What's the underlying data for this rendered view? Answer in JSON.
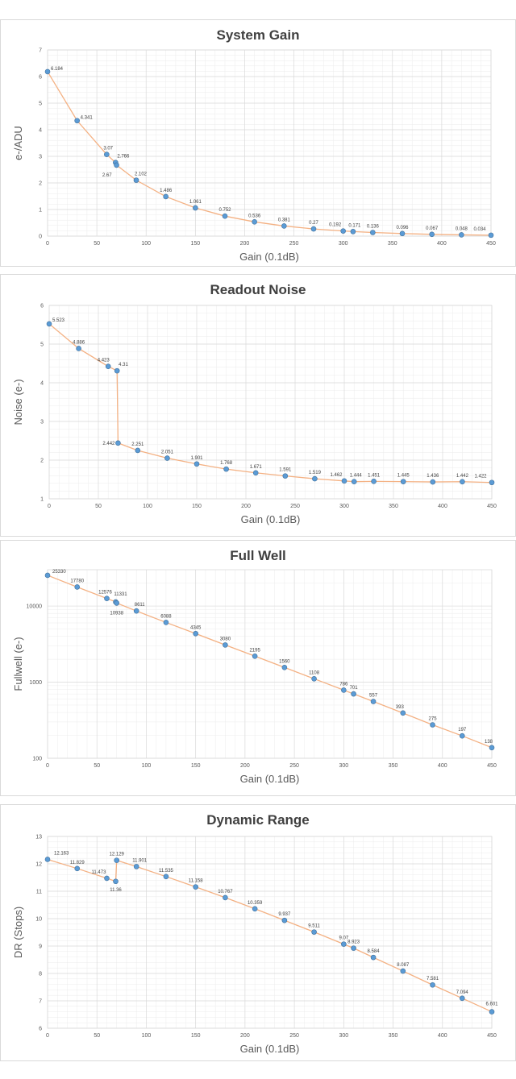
{
  "chart_data": [
    {
      "type": "line",
      "title": "System Gain",
      "xlabel": "Gain (0.1dB)",
      "ylabel": "e-/ADU",
      "xlim": [
        0,
        450
      ],
      "ylim": [
        0,
        7
      ],
      "xticks": [
        0,
        50,
        100,
        150,
        200,
        250,
        300,
        350,
        400,
        450
      ],
      "yticks": [
        0,
        1,
        2,
        3,
        4,
        5,
        6,
        7
      ],
      "grid": true,
      "legend": "none",
      "series": [
        {
          "x": [
            0,
            30,
            60,
            69,
            70,
            90,
            120,
            150,
            180,
            210,
            240,
            270,
            300,
            310,
            330,
            360,
            390,
            420,
            450
          ],
          "values": [
            6.184,
            4.341,
            3.07,
            2.766,
            2.67,
            2.102,
            1.486,
            1.061,
            0.752,
            0.536,
            0.381,
            0.27,
            0.192,
            0.171,
            0.136,
            0.096,
            0.067,
            0.048,
            0.034
          ],
          "labels": [
            "6.184",
            "4.341",
            "3.07",
            "2.766",
            "2.67",
            "2.102",
            "1.486",
            "1.061",
            "0.752",
            "0.536",
            "0.381",
            "0.27",
            "0.192",
            "0.171",
            "0.136",
            "0.096",
            "0.067",
            "0.048",
            "0.034"
          ]
        }
      ]
    },
    {
      "type": "line",
      "title": "Readout Noise",
      "xlabel": "Gain (0.1dB)",
      "ylabel": "Noise (e-)",
      "xlim": [
        0,
        450
      ],
      "ylim": [
        1,
        6
      ],
      "xticks": [
        0,
        50,
        100,
        150,
        200,
        250,
        300,
        350,
        400,
        450
      ],
      "yticks": [
        1,
        2,
        3,
        4,
        5,
        6
      ],
      "grid": true,
      "legend": "none",
      "series": [
        {
          "x": [
            0,
            30,
            60,
            69,
            70,
            90,
            120,
            150,
            180,
            210,
            240,
            270,
            300,
            310,
            330,
            360,
            390,
            420,
            450
          ],
          "values": [
            5.523,
            4.886,
            4.423,
            4.31,
            2.442,
            2.251,
            2.051,
            1.901,
            1.768,
            1.671,
            1.591,
            1.519,
            1.462,
            1.444,
            1.451,
            1.445,
            1.436,
            1.442,
            1.422
          ],
          "labels": [
            "5.523",
            "4.886",
            "4.423",
            "4.31",
            "2.442",
            "2.251",
            "2.051",
            "1.901",
            "1.768",
            "1.671",
            "1.591",
            "1.519",
            "1.462",
            "1.444",
            "1.451",
            "1.445",
            "1.436",
            "1.442",
            "1.422"
          ]
        }
      ]
    },
    {
      "type": "line",
      "title": "Full Well",
      "xlabel": "Gain (0.1dB)",
      "ylabel": "Fullwell (e-)",
      "yscale": "log",
      "xlim": [
        0,
        450
      ],
      "ylim": [
        100,
        30000
      ],
      "xticks": [
        0,
        50,
        100,
        150,
        200,
        250,
        300,
        350,
        400,
        450
      ],
      "yticks": [
        100,
        1000,
        10000
      ],
      "grid": true,
      "legend": "none",
      "series": [
        {
          "x": [
            0,
            30,
            60,
            69,
            70,
            90,
            120,
            150,
            180,
            210,
            240,
            270,
            300,
            310,
            330,
            360,
            390,
            420,
            450
          ],
          "values": [
            25330,
            17780,
            12576,
            11331,
            10938,
            8611,
            6088,
            4345,
            3080,
            2195,
            1560,
            1108,
            786,
            701,
            557,
            393,
            275,
            197,
            138
          ],
          "labels": [
            "25330",
            "17780",
            "12576",
            "11331",
            "10938",
            "8611",
            "6088",
            "4345",
            "3080",
            "2195",
            "1560",
            "1108",
            "786",
            "701",
            "557",
            "393",
            "275",
            "197",
            "138"
          ]
        }
      ]
    },
    {
      "type": "line",
      "title": "Dynamic Range",
      "xlabel": "Gain (0.1dB)",
      "ylabel": "DR (Stops)",
      "xlim": [
        0,
        450
      ],
      "ylim": [
        6,
        13
      ],
      "xticks": [
        0,
        50,
        100,
        150,
        200,
        250,
        300,
        350,
        400,
        450
      ],
      "yticks": [
        6,
        7,
        8,
        9,
        10,
        11,
        12,
        13
      ],
      "grid": true,
      "legend": "none",
      "series": [
        {
          "x": [
            0,
            30,
            60,
            69,
            70,
            90,
            120,
            150,
            180,
            210,
            240,
            270,
            300,
            310,
            330,
            360,
            390,
            420,
            450
          ],
          "values": [
            12.163,
            11.829,
            11.473,
            11.36,
            12.129,
            11.901,
            11.535,
            11.158,
            10.767,
            10.359,
            9.937,
            9.511,
            9.07,
            8.923,
            8.584,
            8.087,
            7.581,
            7.094,
            6.601
          ],
          "labels": [
            "12.163",
            "11.829",
            "11.473",
            "11.36",
            "12.129",
            "11.901",
            "11.535",
            "11.158",
            "10.767",
            "10.359",
            "9.937",
            "9.511",
            "9.07",
            "8.923",
            "8.584",
            "8.087",
            "7.581",
            "7.094",
            "6.601"
          ]
        }
      ]
    }
  ]
}
